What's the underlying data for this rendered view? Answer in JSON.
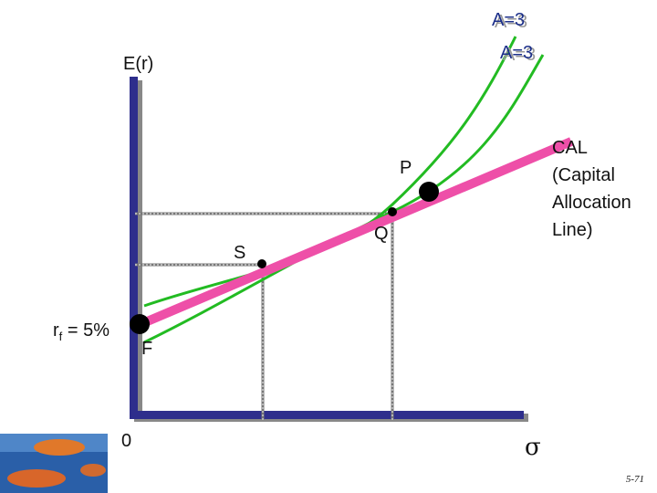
{
  "curve_labels": [
    "A=3",
    "A=3"
  ],
  "axes": {
    "y_label": "E(r)",
    "x_label": "σ",
    "origin": "0"
  },
  "points": {
    "p": "P",
    "q": "Q",
    "s": "S",
    "f": "F"
  },
  "risk_free": {
    "symbol": "r",
    "subscript": "f",
    "text": " = 5%"
  },
  "cal_label": [
    "CAL",
    "(Capital",
    "Allocation",
    "Line)"
  ],
  "page_number": "5-71"
}
